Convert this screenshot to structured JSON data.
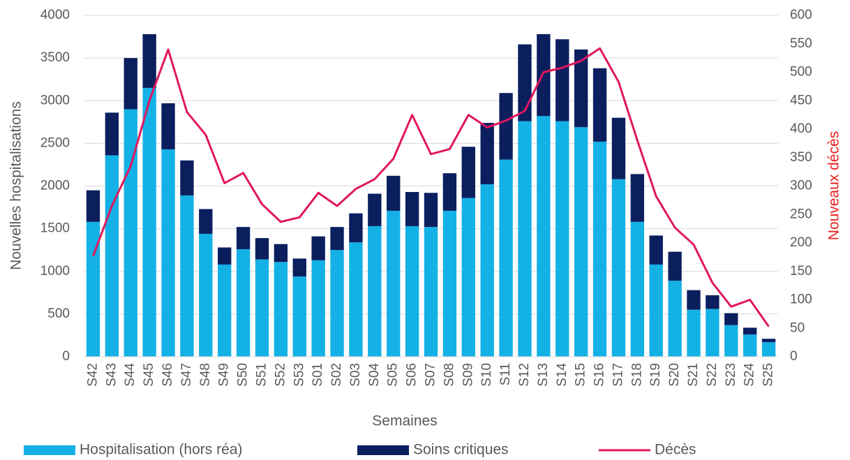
{
  "chart_data": {
    "type": "bar",
    "stacked": true,
    "xlabel": "Semaines",
    "ylabel": "Nouvelles hospitalisations",
    "y2label": "Nouveaux décès",
    "y2label_color": "#e8201e",
    "categories": [
      "S42",
      "S43",
      "S44",
      "S45",
      "S46",
      "S47",
      "S48",
      "S49",
      "S50",
      "S51",
      "S52",
      "S53",
      "S01",
      "S02",
      "S03",
      "S04",
      "S05",
      "S06",
      "S07",
      "S08",
      "S09",
      "S10",
      "S11",
      "S12",
      "S13",
      "S14",
      "S15",
      "S16",
      "S17",
      "S18",
      "S19",
      "S20",
      "S21",
      "S22",
      "S23",
      "S24",
      "S25"
    ],
    "series": [
      {
        "name": "Hospitalisation (hors réa)",
        "type": "bar",
        "color": "#14b1e7",
        "values": [
          1580,
          2360,
          2900,
          3150,
          2430,
          1890,
          1440,
          1080,
          1260,
          1140,
          1110,
          940,
          1130,
          1250,
          1340,
          1530,
          1710,
          1530,
          1520,
          1710,
          1860,
          2020,
          2310,
          2760,
          2820,
          2760,
          2690,
          2520,
          2080,
          1580,
          1080,
          890,
          550,
          560,
          370,
          260,
          170
        ]
      },
      {
        "name": "Soins critiques",
        "type": "bar",
        "color": "#0b1f5f",
        "values": [
          370,
          500,
          600,
          630,
          540,
          410,
          290,
          200,
          260,
          250,
          210,
          210,
          280,
          270,
          340,
          380,
          410,
          400,
          400,
          440,
          600,
          720,
          780,
          900,
          960,
          960,
          910,
          860,
          720,
          560,
          340,
          340,
          230,
          160,
          140,
          80,
          40
        ]
      },
      {
        "name": "Décès",
        "type": "line",
        "axis": "y2",
        "color": "#e0175c",
        "values": [
          177,
          265,
          335,
          450,
          540,
          430,
          390,
          305,
          323,
          268,
          237,
          245,
          288,
          265,
          295,
          312,
          348,
          425,
          356,
          365,
          425,
          403,
          415,
          432,
          500,
          508,
          520,
          542,
          483,
          380,
          282,
          227,
          197,
          130,
          88,
          100,
          53
        ]
      }
    ],
    "ylim": [
      0,
      4000
    ],
    "yticks": [
      0,
      500,
      1000,
      1500,
      2000,
      2500,
      3000,
      3500,
      4000
    ],
    "y2lim": [
      0,
      600
    ],
    "y2ticks": [
      0,
      50,
      100,
      150,
      200,
      250,
      300,
      350,
      400,
      450,
      500,
      550,
      600
    ],
    "grid": true,
    "legend": "bottom"
  }
}
